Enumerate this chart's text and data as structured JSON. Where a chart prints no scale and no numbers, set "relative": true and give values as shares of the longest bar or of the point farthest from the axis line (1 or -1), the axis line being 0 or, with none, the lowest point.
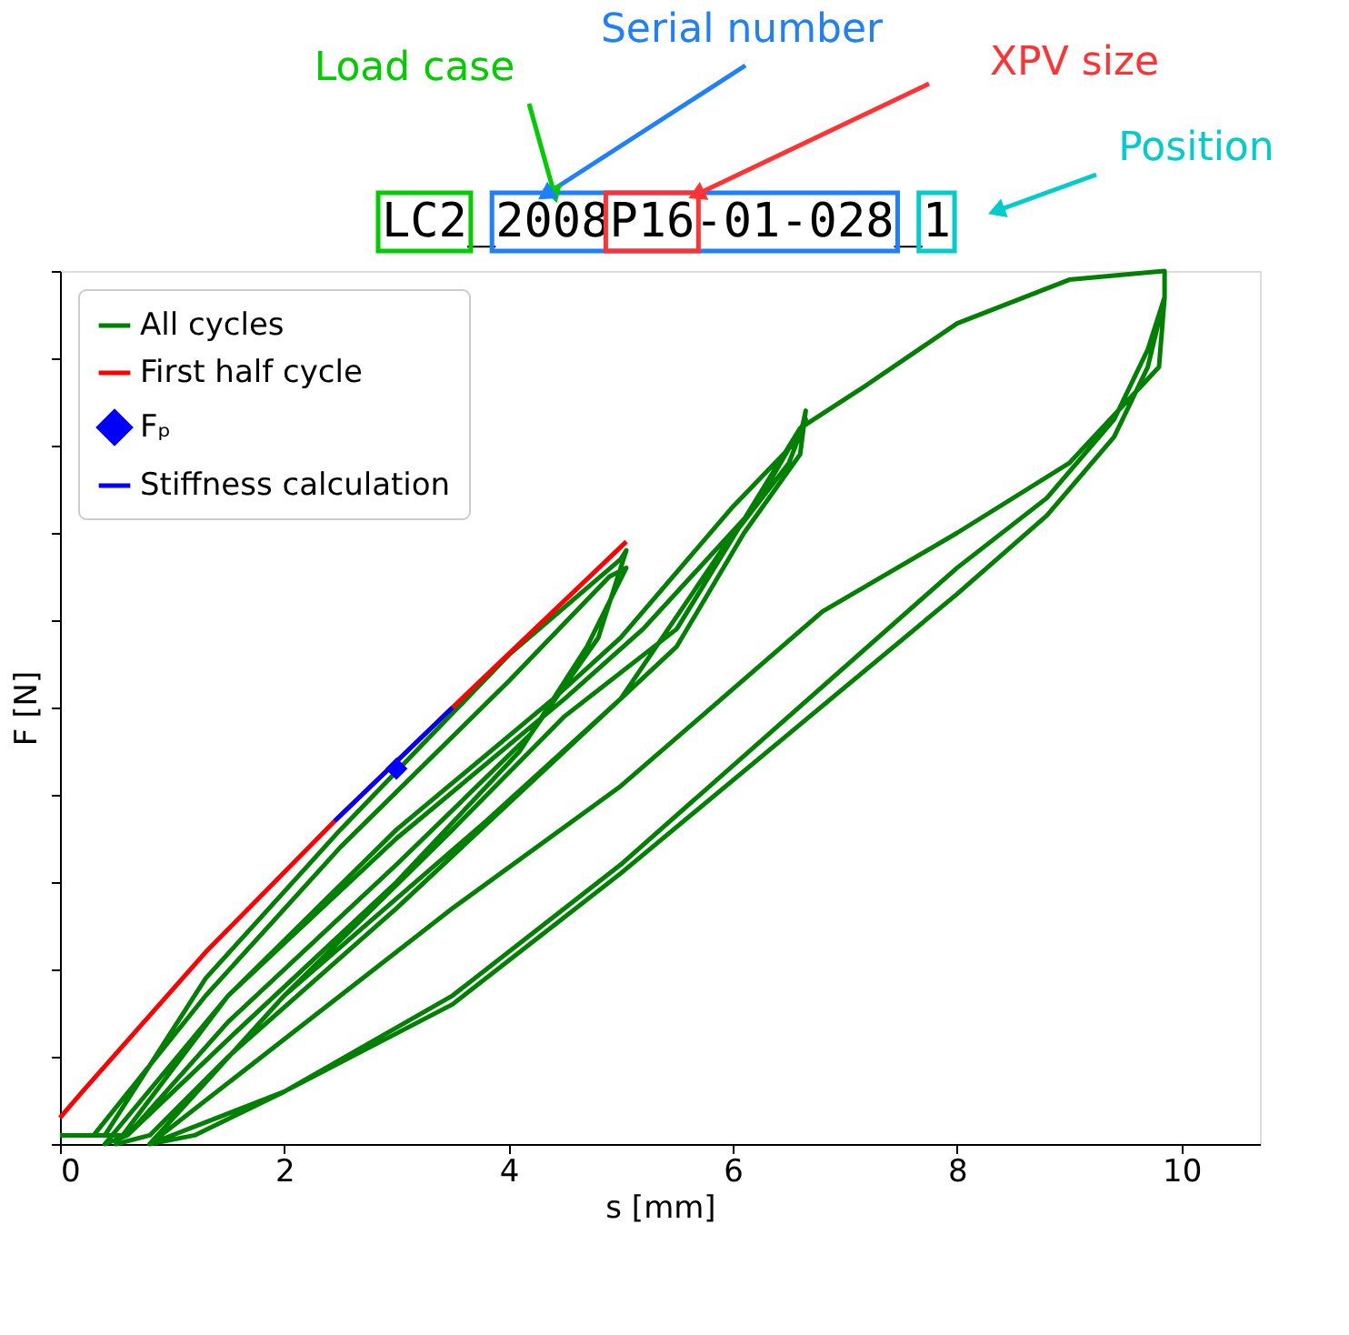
{
  "chart_data": {
    "type": "line",
    "relative": true,
    "xlabel": "s [mm]",
    "ylabel": "F [N]",
    "xlim": [
      0,
      10.7
    ],
    "xticks": [
      0,
      2,
      4,
      6,
      8,
      10
    ],
    "grid": false,
    "legend": "top left",
    "line_style": "solid",
    "annotations": [
      "LC2_2008P16-01-028_1",
      "Load case",
      "Serial number",
      "XPV size",
      "Position"
    ],
    "series": [
      {
        "name": "All cycles",
        "color": "#008000",
        "x": [
          0,
          0.2,
          0.4,
          1.3,
          2.5,
          4.0,
          5.0,
          5.05,
          4.8,
          4.2,
          3.0,
          1.5,
          0.6,
          0.3,
          1.3,
          2.5,
          4.0,
          4.9,
          5.05,
          4.7,
          4.1,
          3.0,
          1.5,
          0.6,
          0.4,
          1.5,
          3.0,
          4.4,
          5.0,
          6.0,
          6.6,
          6.65,
          6.6,
          6.1,
          5.5,
          4.5,
          3.0,
          1.5,
          0.8,
          0.5,
          1.5,
          3.0,
          4.5,
          5.2,
          6.2,
          6.65,
          6.5,
          5.9,
          5.0,
          3.8,
          2.0,
          0.8,
          0.8,
          2.0,
          3.5,
          4.5,
          5.5,
          6.6,
          7.2,
          8.0,
          9.0,
          9.85,
          9.85,
          9.7,
          9.4,
          8.8,
          8.0,
          6.5,
          5.0,
          3.5,
          2.0,
          1.2,
          0.8,
          2.0,
          3.5,
          5.0,
          6.8,
          8.0,
          9.0,
          9.8,
          9.85,
          9.7,
          9.4,
          8.8,
          8.0,
          6.5,
          5.0,
          3.5,
          2.0,
          0.8
        ],
        "values": [
          0.01,
          0.01,
          0.01,
          0.19,
          0.36,
          0.56,
          0.67,
          0.68,
          0.58,
          0.47,
          0.32,
          0.14,
          0.01,
          0.01,
          0.17,
          0.34,
          0.53,
          0.65,
          0.66,
          0.57,
          0.45,
          0.3,
          0.12,
          0.01,
          0,
          0.17,
          0.36,
          0.51,
          0.58,
          0.73,
          0.81,
          0.84,
          0.79,
          0.7,
          0.57,
          0.45,
          0.27,
          0.1,
          0.01,
          0,
          0.17,
          0.35,
          0.51,
          0.59,
          0.73,
          0.83,
          0.78,
          0.68,
          0.51,
          0.37,
          0.17,
          0,
          0,
          0.17,
          0.36,
          0.49,
          0.59,
          0.82,
          0.87,
          0.94,
          0.99,
          1,
          0.97,
          0.91,
          0.83,
          0.74,
          0.66,
          0.49,
          0.32,
          0.17,
          0.06,
          0.01,
          0,
          0.12,
          0.27,
          0.41,
          0.61,
          0.7,
          0.78,
          0.89,
          0.97,
          0.89,
          0.81,
          0.72,
          0.63,
          0.47,
          0.31,
          0.16,
          0.06,
          0
        ]
      },
      {
        "name": "First half cycle",
        "color": "#ff0000",
        "x": [
          0,
          0.2,
          1.3,
          2.45,
          3.5,
          5.05
        ],
        "values": [
          0.03,
          0.06,
          0.22,
          0.37,
          0.5,
          0.69
        ]
      },
      {
        "name": "Stiffness calculation",
        "color": "#0000ff",
        "x": [
          2.45,
          3.5
        ],
        "values": [
          0.37,
          0.5
        ]
      },
      {
        "name": "Fₚ",
        "type": "scatter",
        "marker": "diamond",
        "color": "#0000ff",
        "x": [
          3.0
        ],
        "values": [
          0.43
        ]
      }
    ]
  }
}
